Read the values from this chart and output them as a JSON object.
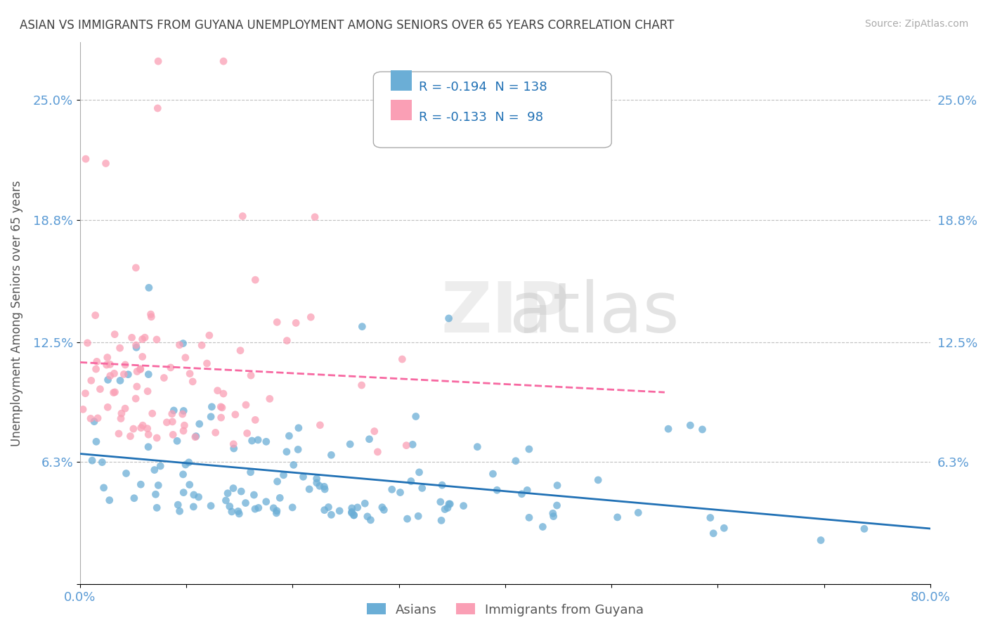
{
  "title": "ASIAN VS IMMIGRANTS FROM GUYANA UNEMPLOYMENT AMONG SENIORS OVER 65 YEARS CORRELATION CHART",
  "source": "Source: ZipAtlas.com",
  "xlabel_bottom": "",
  "ylabel": "Unemployment Among Seniors over 65 years",
  "legend_labels": [
    "Asians",
    "Immigrants from Guyana"
  ],
  "legend_colors": [
    "#6baed6",
    "#fa9fb5"
  ],
  "R_asian": -0.194,
  "N_asian": 138,
  "R_guyana": -0.133,
  "N_guyana": 98,
  "xlim": [
    0.0,
    0.8
  ],
  "ylim": [
    0.0,
    0.28
  ],
  "yticks": [
    0.0,
    0.063,
    0.125,
    0.188,
    0.25
  ],
  "ytick_labels": [
    "",
    "6.3%",
    "12.5%",
    "18.8%",
    "25.0%"
  ],
  "xticks": [
    0.0,
    0.1,
    0.2,
    0.3,
    0.4,
    0.5,
    0.6,
    0.7,
    0.8
  ],
  "xtick_labels": [
    "0.0%",
    "",
    "",
    "",
    "",
    "",
    "",
    "",
    "80.0%"
  ],
  "axis_label_color": "#5b9bd5",
  "watermark": "ZIPatlas",
  "background_color": "#ffffff",
  "scatter_alpha": 0.7,
  "asian_color": "#6baed6",
  "guyana_color": "#fa9fb5",
  "asian_trend_color": "#2171b5",
  "guyana_trend_color": "#f768a1",
  "grid_color": "#c0c0c0",
  "title_color": "#404040",
  "tick_label_color": "#5b9bd5",
  "seed_asian": 42,
  "seed_guyana": 99
}
